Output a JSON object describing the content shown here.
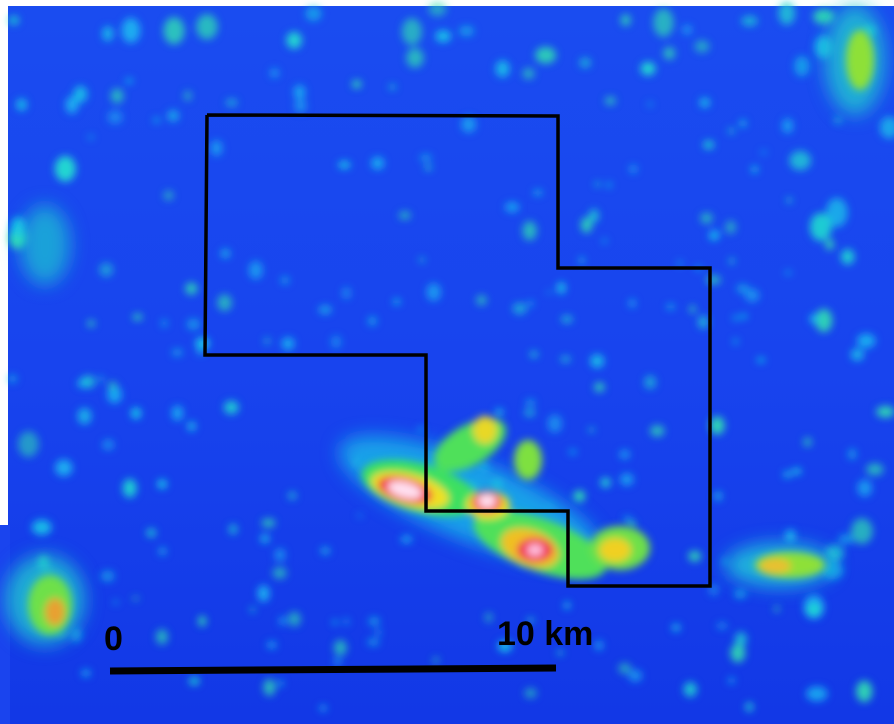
{
  "map": {
    "scale_bar": {
      "start_label": "0",
      "end_label": "10 km"
    }
  }
}
